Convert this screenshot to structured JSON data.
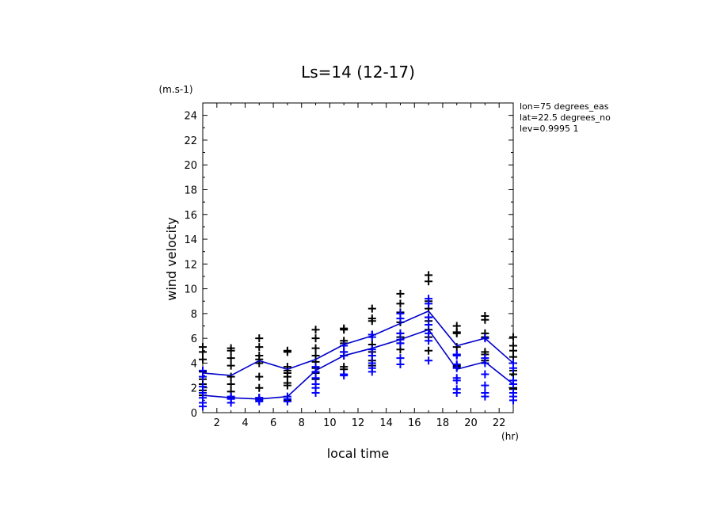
{
  "chart_data": {
    "type": "scatter",
    "title": "Ls=14 (12-17)",
    "xlabel": "local time",
    "ylabel": "wind velocity",
    "x_unit": "(hr)",
    "y_unit": "(m.s-1)",
    "xlim": [
      1,
      23
    ],
    "ylim": [
      0,
      25
    ],
    "x_ticks": [
      2,
      4,
      6,
      8,
      10,
      12,
      14,
      16,
      18,
      20,
      22
    ],
    "y_ticks": [
      0,
      2,
      4,
      6,
      8,
      10,
      12,
      14,
      16,
      18,
      20,
      22,
      24
    ],
    "info": [
      "lon=75 degrees_eas",
      "lat=22.5 degrees_no",
      "lev=0.9995 1"
    ],
    "colors": {
      "primary": "#000000",
      "secondary": "#0000ff",
      "line": "#0000cc"
    },
    "x": [
      1,
      3,
      5,
      7,
      9,
      11,
      13,
      15,
      17,
      19,
      21,
      23
    ],
    "series": [
      {
        "color": "#000000",
        "marker": "plus",
        "points": [
          [
            [
              5.3,
              4.9,
              4.3,
              3.3,
              2.7,
              2.3,
              1.8,
              1.4
            ]
          ],
          [
            [
              5.2,
              5.0,
              4.4,
              3.8,
              2.9,
              2.3,
              1.7,
              1.2
            ]
          ],
          [
            [
              6.0,
              5.3,
              4.6,
              4.3,
              4.0,
              2.9,
              2.0,
              1.2
            ]
          ],
          [
            [
              5.0,
              4.9,
              3.7,
              3.4,
              3.2,
              2.9,
              2.4,
              2.2,
              1.0
            ]
          ],
          [
            [
              6.7,
              6.0,
              5.2,
              4.6,
              4.1,
              3.6,
              3.2,
              2.7
            ]
          ],
          [
            [
              6.8,
              6.7,
              5.8,
              5.6,
              4.9,
              4.6,
              3.7,
              3.5
            ]
          ],
          [
            [
              8.4,
              7.6,
              7.4,
              6.3,
              5.5,
              4.9,
              4.2,
              3.8
            ]
          ],
          [
            [
              9.6,
              8.8,
              8.1,
              7.3,
              6.4,
              6.1,
              5.6,
              5.1
            ]
          ],
          [
            [
              11.1,
              10.6,
              9.0,
              8.4,
              7.7,
              7.4,
              6.7,
              6.1,
              5.0
            ]
          ],
          [
            [
              7.0,
              6.5,
              6.4,
              5.3,
              4.7,
              3.8,
              3.7
            ]
          ],
          [
            [
              7.8,
              7.5,
              6.4,
              6.1,
              4.9,
              4.7,
              4.2
            ]
          ],
          [
            [
              6.1,
              5.4,
              5.0,
              4.5,
              3.4,
              3.1,
              2.0,
              1.9
            ]
          ]
        ]
      },
      {
        "color": "#0000ff",
        "marker": "plus",
        "points": [
          [
            [
              3.4,
              2.9,
              2.1,
              1.6,
              1.2,
              0.8,
              0.5
            ]
          ],
          [
            [
              1.3,
              1.2,
              1.1,
              0.8
            ]
          ],
          [
            [
              1.2,
              1.1,
              1.0,
              0.9
            ]
          ],
          [
            [
              1.3,
              1.1,
              0.9
            ]
          ],
          [
            [
              3.7,
              3.3,
              2.8,
              2.3,
              2.0,
              1.6
            ]
          ],
          [
            [
              5.4,
              4.9,
              4.6,
              3.1,
              3.0
            ]
          ],
          [
            [
              6.3,
              6.1,
              5.1,
              4.6,
              4.0,
              3.6,
              3.3
            ]
          ],
          [
            [
              8.0,
              7.6,
              6.4,
              5.9,
              5.6,
              4.4,
              3.9
            ]
          ],
          [
            [
              9.2,
              8.8,
              7.7,
              7.1,
              6.4,
              5.8,
              4.2
            ]
          ],
          [
            [
              4.7,
              4.6,
              3.9,
              3.6,
              2.8,
              2.6,
              1.9,
              1.6
            ]
          ],
          [
            [
              6.0,
              4.4,
              4.0,
              3.1,
              2.2,
              1.6,
              1.3
            ]
          ],
          [
            [
              4.0,
              3.6,
              2.6,
              2.3,
              1.6,
              1.3,
              1.0
            ]
          ]
        ]
      }
    ],
    "lines": [
      {
        "color": "#0000cc",
        "y": [
          3.2,
          3.0,
          4.2,
          3.5,
          4.3,
          5.5,
          6.2,
          7.2,
          8.2,
          5.4,
          6.0,
          4.0
        ]
      },
      {
        "color": "#0000cc",
        "y": [
          1.4,
          1.2,
          1.1,
          1.3,
          3.4,
          4.6,
          5.2,
          5.9,
          6.7,
          3.5,
          4.1,
          2.3
        ]
      }
    ]
  }
}
